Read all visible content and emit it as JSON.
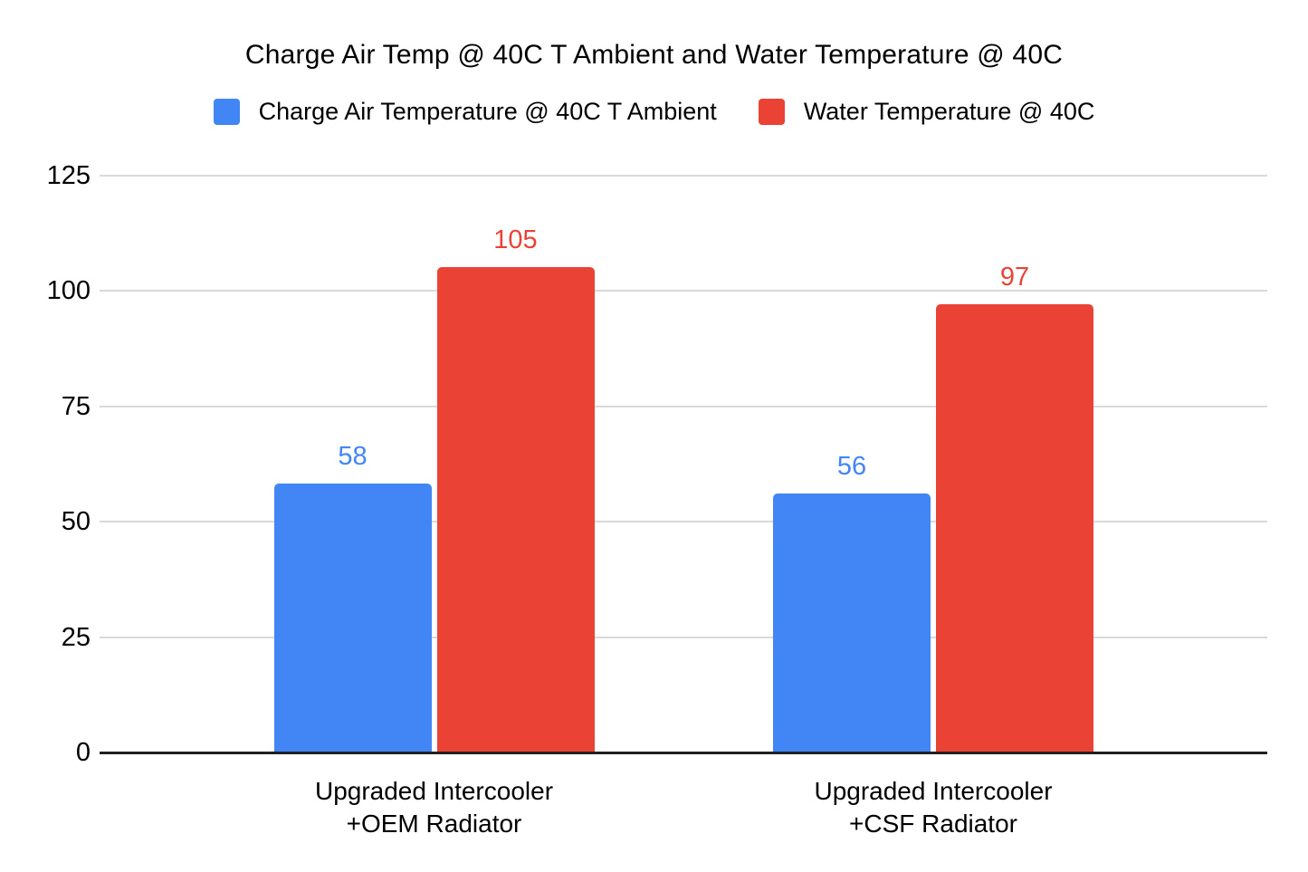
{
  "page": {
    "background_color": "#ffffff"
  },
  "chart_data": {
    "type": "bar",
    "title": "Charge Air Temp @ 40C T Ambient and Water Temperature @ 40C",
    "categories": [
      "Upgraded Intercooler\n+OEM Radiator",
      "Upgraded Intercooler\n+CSF Radiator"
    ],
    "series": [
      {
        "name": "Charge Air Temperature @ 40C T Ambient",
        "color": "#4285F4",
        "values": [
          58,
          56
        ]
      },
      {
        "name": "Water Temperature @ 40C",
        "color": "#EA4335",
        "values": [
          105,
          97
        ]
      }
    ],
    "y_ticks": [
      0,
      25,
      50,
      75,
      100,
      125
    ],
    "ylim": [
      0,
      125
    ],
    "xlabel": "",
    "ylabel": "",
    "grid": true,
    "legend_position": "top",
    "data_labels": true,
    "gridline_color": "#d9d9d9",
    "axis_line_color": "#212121",
    "tick_label_color": "#000000",
    "category_label_color": "#000000"
  }
}
